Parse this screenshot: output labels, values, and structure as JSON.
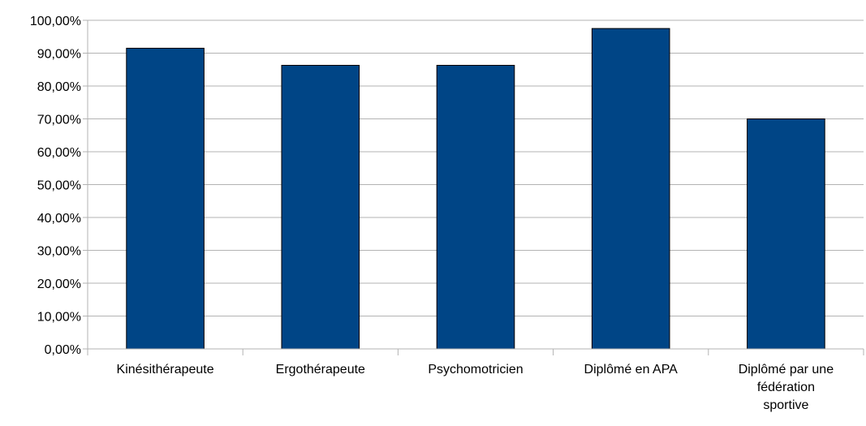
{
  "chart_data": {
    "type": "bar",
    "categories": [
      [
        "Kinésithérapeute"
      ],
      [
        "Ergothérapeute"
      ],
      [
        "Psychomotricien"
      ],
      [
        "Diplômé en APA"
      ],
      [
        "Diplômé par une",
        "fédération",
        "sportive"
      ]
    ],
    "values": [
      91.5,
      86.3,
      86.3,
      97.5,
      70.0
    ],
    "ylim": [
      0,
      100
    ],
    "yticks": [
      "0,00%",
      "10,00%",
      "20,00%",
      "30,00%",
      "40,00%",
      "50,00%",
      "60,00%",
      "70,00%",
      "80,00%",
      "90,00%",
      "100,00%"
    ],
    "grid": true,
    "legend": "none",
    "colors": {
      "bar": "#004586",
      "bar_stroke": "#000000",
      "grid": "#b3b3b3",
      "axis": "#b3b3b3"
    }
  }
}
